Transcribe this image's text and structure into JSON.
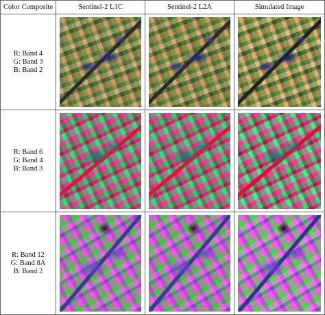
{
  "table": {
    "header": [
      "Color Composite",
      "Sentinel-2 L1C",
      "Sentinel-2 L2A",
      "Simulated Image"
    ],
    "rows": [
      {
        "bands": [
          "R: Band 4",
          "G: Band 3",
          "B: Band 2"
        ]
      },
      {
        "bands": [
          "R: Band 6",
          "G: Band 4",
          "B: Band 3"
        ]
      },
      {
        "bands": [
          "R: Band 12",
          "G: Band 8A",
          "B: Band 2"
        ]
      }
    ]
  }
}
